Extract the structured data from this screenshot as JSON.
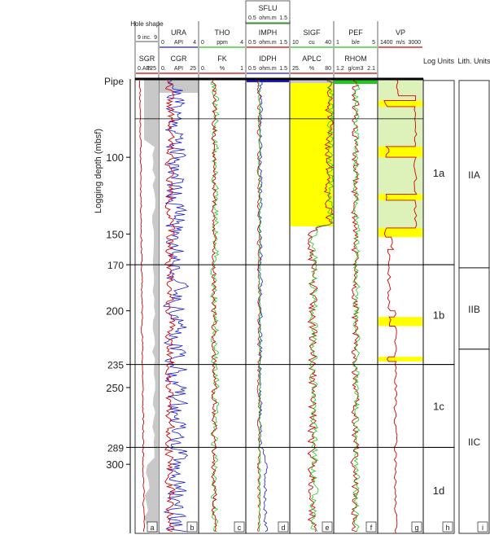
{
  "chart_data": {
    "type": "line",
    "ylabel": "Logging depth (mbsf)",
    "y_ticks": [
      "100",
      "150",
      "200",
      "250",
      "300"
    ],
    "ylim": [
      49,
      345
    ],
    "grid": false,
    "boundaries": [
      {
        "label": "Pipe",
        "depth": 50
      },
      {
        "label": "170",
        "depth": 170
      },
      {
        "label": "235",
        "depth": 235
      },
      {
        "label": "289",
        "depth": 289
      }
    ],
    "log_units": {
      "title": "Log Units",
      "units": [
        {
          "label": "1a",
          "top": 50,
          "bottom": 170
        },
        {
          "label": "1b",
          "top": 170,
          "bottom": 235
        },
        {
          "label": "1c",
          "top": 235,
          "bottom": 289
        },
        {
          "label": "1d",
          "top": 289,
          "bottom": 345
        }
      ]
    },
    "lith_units": {
      "title": "Lith. Units",
      "units": [
        {
          "label": "IIA",
          "top": 50,
          "bottom": 172
        },
        {
          "label": "IIB",
          "top": 172,
          "bottom": 225
        },
        {
          "label": "IIC",
          "top": 225,
          "bottom": 345
        }
      ]
    },
    "tracks": [
      {
        "panel": "a",
        "curves": [
          {
            "name": "Hole shape",
            "unit": "inc.",
            "min": "9",
            "max": "9",
            "color": "#555555"
          },
          {
            "name": "SGR",
            "unit": "API",
            "min": "0.",
            "max": "125",
            "color": "#d40000"
          }
        ],
        "shading": "#c8c8c8"
      },
      {
        "panel": "b",
        "curves": [
          {
            "name": "URA",
            "unit": "API",
            "min": "0",
            "max": "4",
            "color": "#1a1adc"
          },
          {
            "name": "CGR",
            "unit": "API",
            "min": "0.",
            "max": "25",
            "color": "#d40000"
          }
        ]
      },
      {
        "panel": "c",
        "curves": [
          {
            "name": "THO",
            "unit": "ppm",
            "min": "0",
            "max": "4",
            "color": "#1ec81e"
          },
          {
            "name": "FK",
            "unit": "%",
            "min": "0.",
            "max": "1",
            "color": "#d40000"
          }
        ]
      },
      {
        "panel": "d",
        "curves": [
          {
            "name": "SFLU",
            "unit": "ohm.m",
            "min": "0.5",
            "max": "1.5",
            "color": "#1ec81e"
          },
          {
            "name": "IMPH",
            "unit": "ohm.m",
            "min": "0.5",
            "max": "1.5",
            "color": "#d40000"
          },
          {
            "name": "IDPH",
            "unit": "ohm.m",
            "min": "0.5",
            "max": "1.5",
            "color": "#1a1adc"
          }
        ]
      },
      {
        "panel": "e",
        "curves": [
          {
            "name": "SIGF",
            "unit": "cu",
            "min": "10",
            "max": "40",
            "color": "#1ec81e"
          },
          {
            "name": "APLC",
            "unit": "%",
            "min": "25.",
            "max": "80",
            "color": "#d40000"
          }
        ],
        "shading": "#ffff00"
      },
      {
        "panel": "f",
        "curves": [
          {
            "name": "PEF",
            "unit": "b/e",
            "min": "1",
            "max": "5",
            "color": "#1ec81e"
          },
          {
            "name": "RHOM",
            "unit": "g/cm3",
            "min": "1.2",
            "max": "2.1",
            "color": "#d40000"
          }
        ]
      },
      {
        "panel": "g",
        "curves": [
          {
            "name": "VP",
            "unit": "m/s",
            "min": "1400",
            "max": "3000",
            "color": "#d40000"
          }
        ],
        "shading": "#ddf2b8",
        "highlight": "#ffff00"
      }
    ],
    "unit_panels": [
      "h",
      "i"
    ]
  }
}
